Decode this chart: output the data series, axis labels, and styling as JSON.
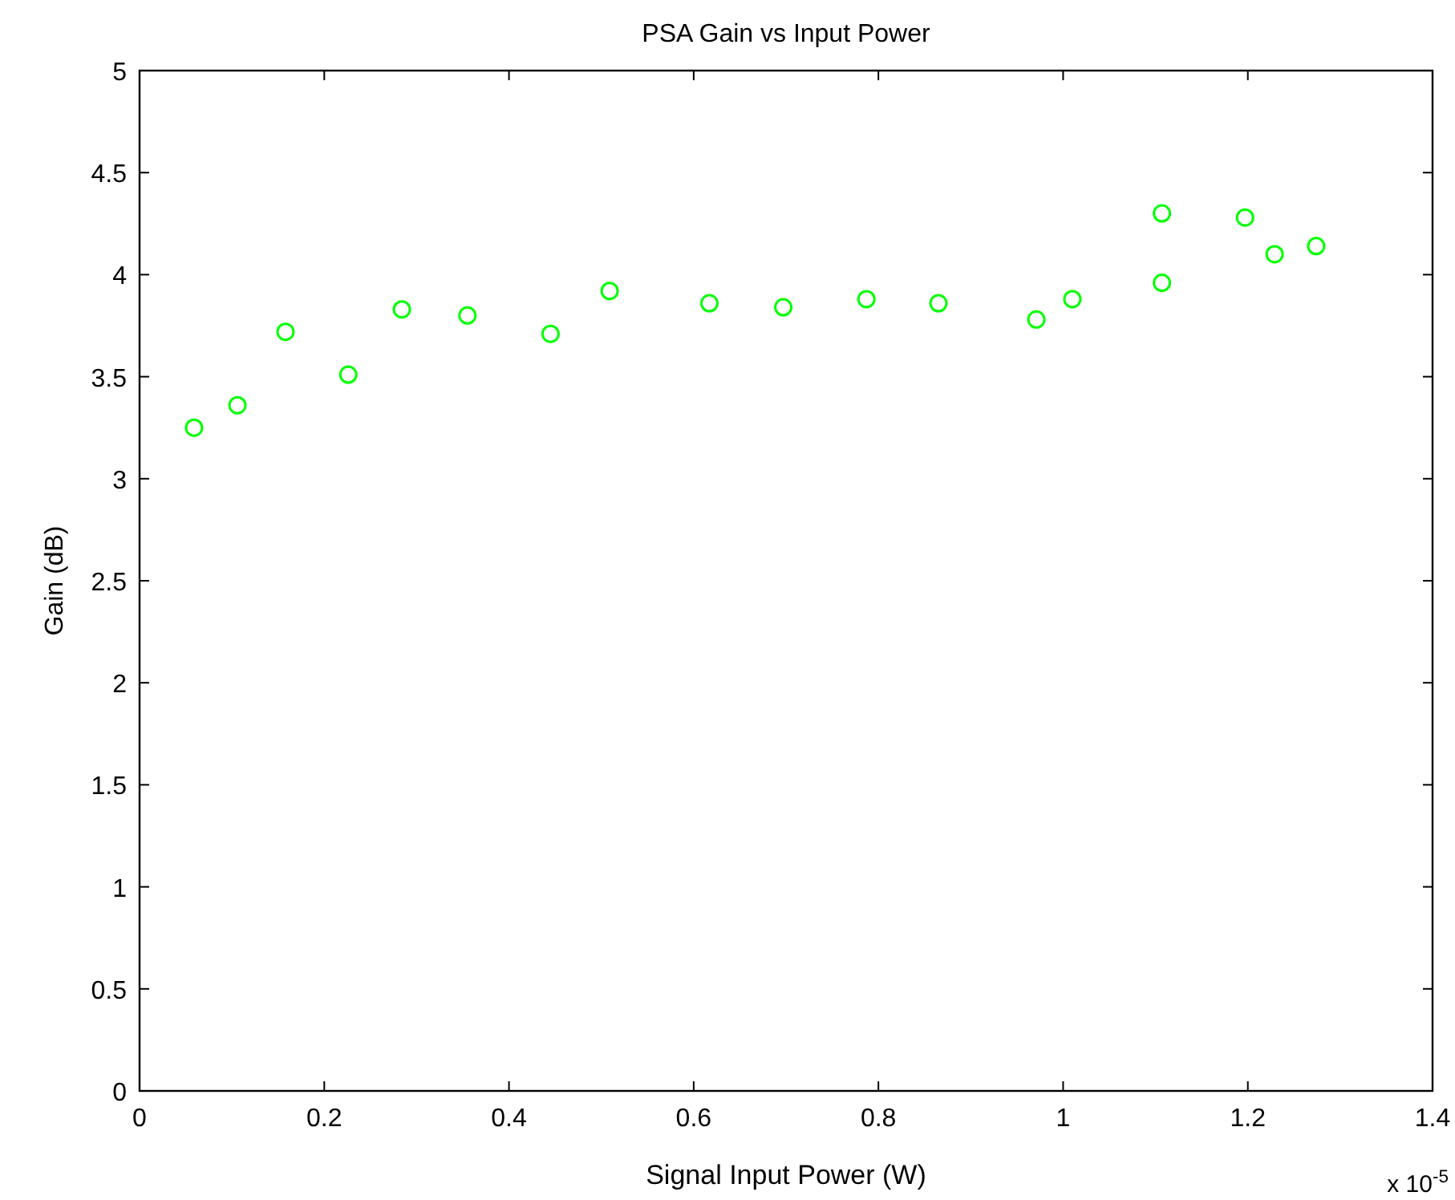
{
  "chart_data": {
    "type": "scatter",
    "title": "PSA Gain vs Input Power",
    "xlabel": "Signal Input Power (W)",
    "ylabel": "Gain (dB)",
    "annotations": [
      "x 10$^{-5}$"
    ],
    "x": [
      0.059,
      0.106,
      0.158,
      0.226,
      0.284,
      0.355,
      0.445,
      0.509,
      0.617,
      0.697,
      0.787,
      0.865,
      0.971,
      1.01,
      1.107,
      1.107,
      1.197,
      1.229,
      1.274
    ],
    "series": [
      {
        "color": "#00ff00",
        "values": [
          3.25,
          3.36,
          3.72,
          3.51,
          3.83,
          3.8,
          3.71,
          3.92,
          3.86,
          3.84,
          3.88,
          3.86,
          3.78,
          3.88,
          3.96,
          4.3,
          4.28,
          4.1,
          4.14
        ]
      }
    ],
    "xlim": [
      0,
      1.4
    ],
    "xticks": [
      0,
      0.2,
      0.4,
      0.6,
      0.8,
      1,
      1.2,
      1.4
    ],
    "ylim": [
      0,
      5
    ],
    "yticks": [
      0,
      0.5,
      1,
      1.5,
      2,
      2.5,
      3,
      3.5,
      4,
      4.5,
      5
    ],
    "grid": false,
    "marker": "circle"
  }
}
